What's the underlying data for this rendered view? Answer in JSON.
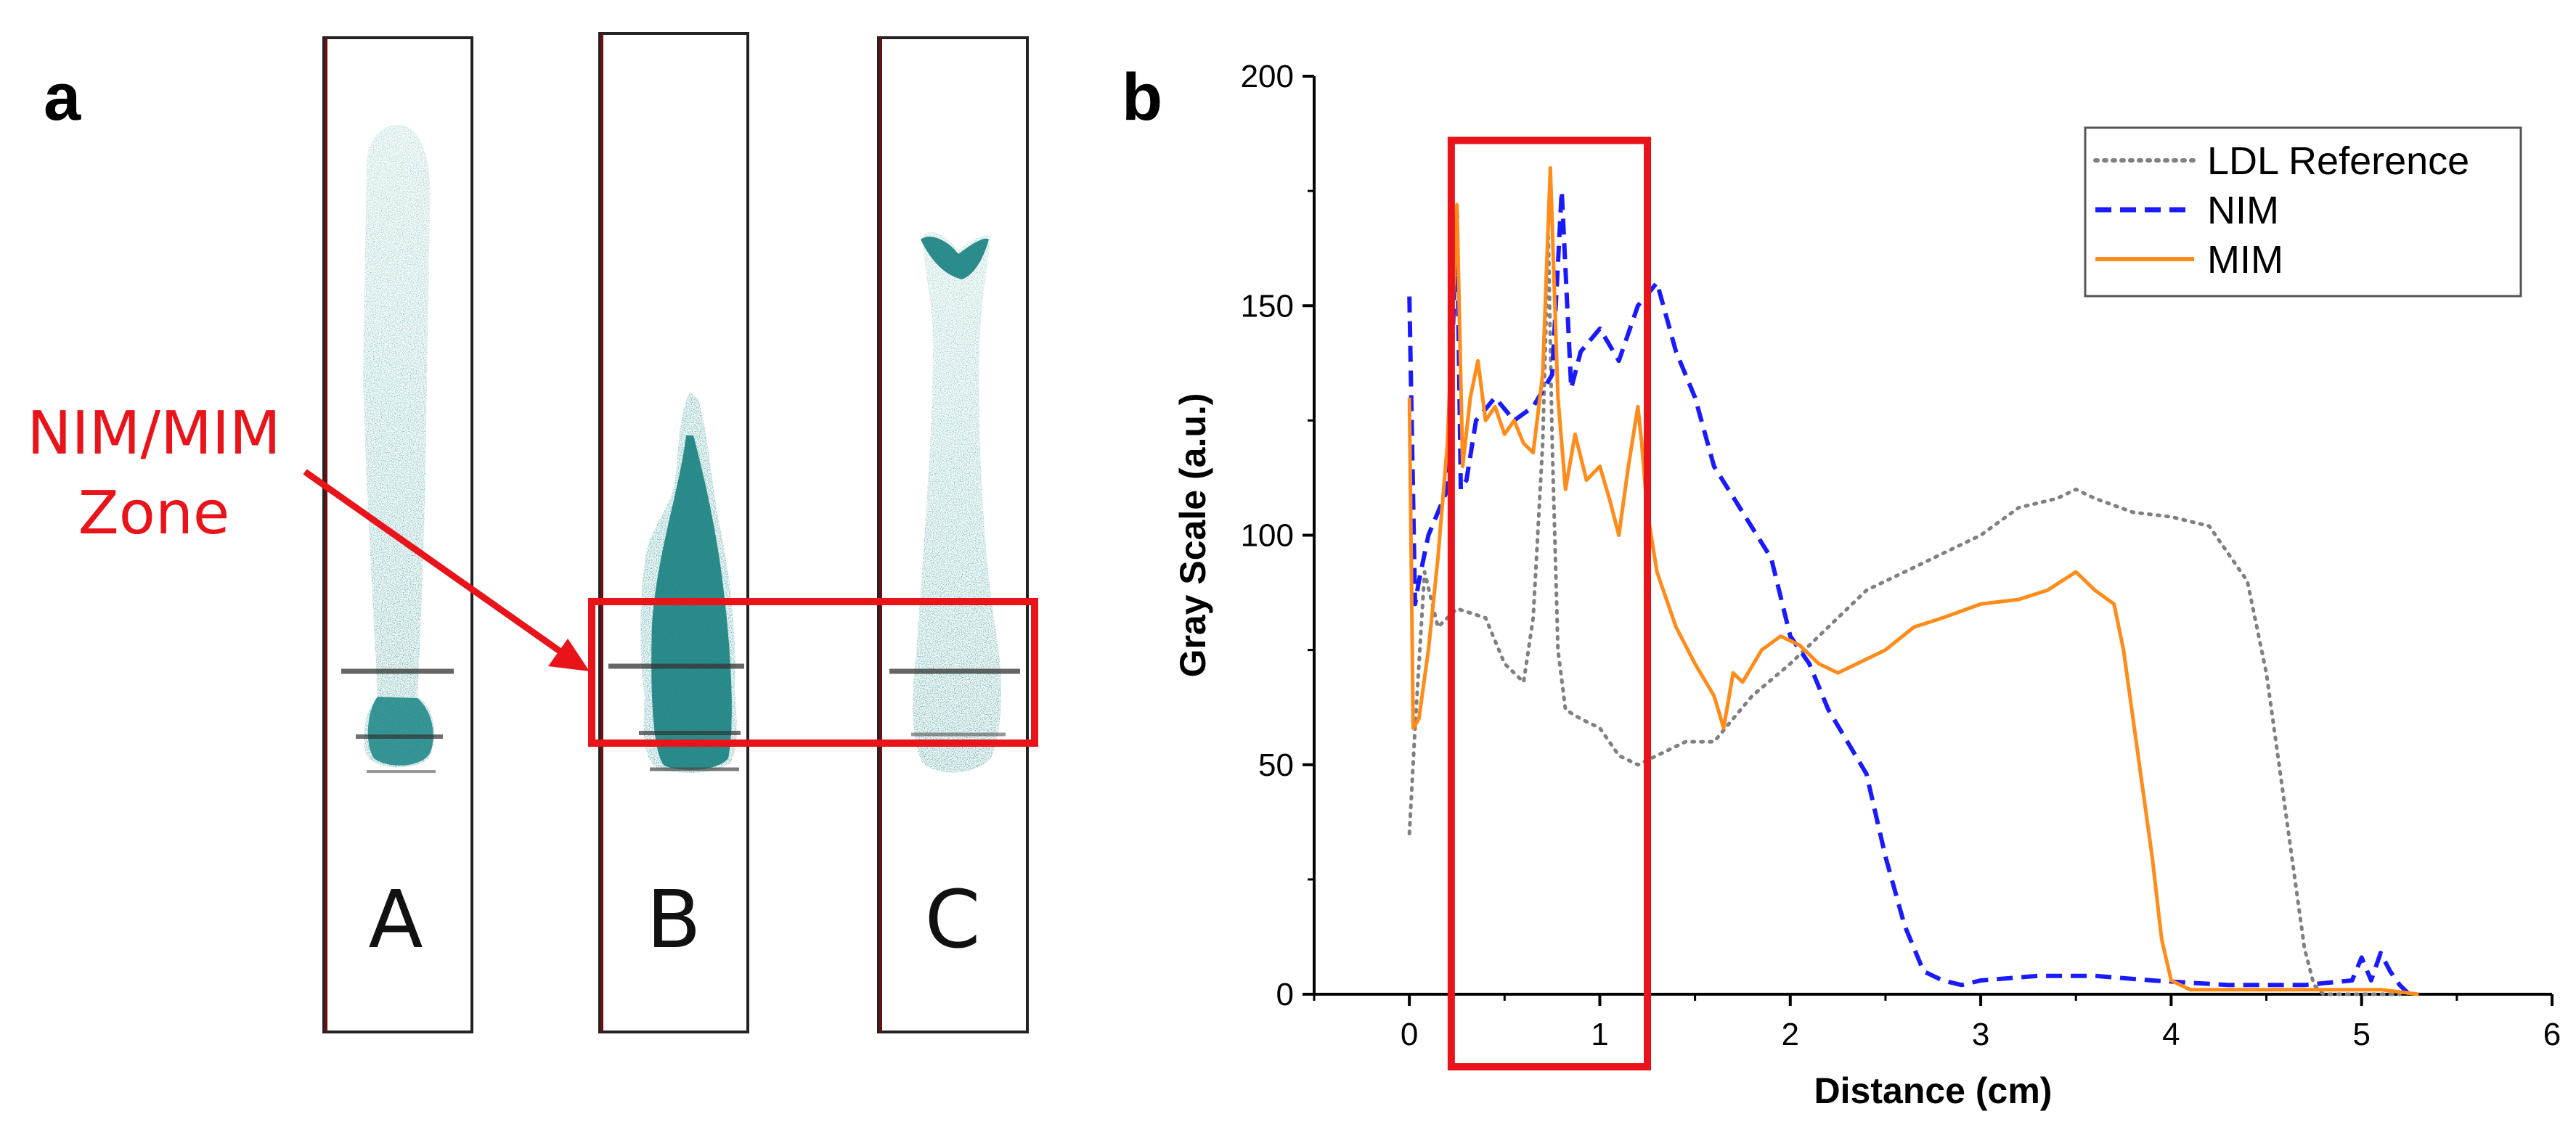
{
  "panel_a": {
    "label": "a",
    "strips": [
      {
        "label": "A"
      },
      {
        "label": "B"
      },
      {
        "label": "C"
      }
    ],
    "zone_label_line1": "NIM/MIM",
    "zone_label_line2": "Zone"
  },
  "panel_b": {
    "label": "b"
  },
  "colors": {
    "highlight": "#e8141a",
    "teal": "#1d8a8a",
    "ldl": "#808080",
    "nim": "#1a1aff",
    "mim": "#ff8c1a"
  },
  "chart_data": {
    "type": "line",
    "title": "",
    "xlabel": "Distance (cm)",
    "ylabel": "Gray Scale (a.u.)",
    "xlim": [
      -0.5,
      6
    ],
    "ylim": [
      0,
      200
    ],
    "xticks": [
      0,
      1,
      2,
      3,
      4,
      5,
      6
    ],
    "yticks": [
      0,
      50,
      100,
      150,
      200
    ],
    "highlight_region": {
      "x": [
        0.22,
        1.25
      ],
      "y": [
        0,
        186
      ]
    },
    "legend_position": "top-right",
    "series": [
      {
        "name": "LDL Reference",
        "style": "dotted",
        "color": "#808080",
        "x": [
          0,
          0.03,
          0.08,
          0.15,
          0.25,
          0.4,
          0.5,
          0.6,
          0.65,
          0.7,
          0.73,
          0.75,
          0.78,
          0.82,
          0.9,
          1.0,
          1.1,
          1.2,
          1.3,
          1.45,
          1.6,
          1.8,
          2.0,
          2.2,
          2.4,
          2.6,
          2.8,
          3.0,
          3.2,
          3.4,
          3.5,
          3.6,
          3.8,
          4.0,
          4.2,
          4.4,
          4.5,
          4.55,
          4.6,
          4.65,
          4.7,
          4.75,
          4.8,
          5.0,
          5.2
        ],
        "y": [
          35,
          58,
          92,
          80,
          84,
          82,
          72,
          68,
          82,
          120,
          165,
          120,
          75,
          62,
          60,
          58,
          52,
          50,
          52,
          55,
          55,
          65,
          72,
          80,
          88,
          92,
          96,
          100,
          106,
          108,
          110,
          108,
          105,
          104,
          102,
          90,
          70,
          55,
          40,
          25,
          10,
          2,
          0,
          0,
          0
        ]
      },
      {
        "name": "NIM",
        "style": "dashed",
        "color": "#1a1aff",
        "x": [
          0,
          0.03,
          0.05,
          0.1,
          0.2,
          0.25,
          0.27,
          0.3,
          0.35,
          0.45,
          0.55,
          0.65,
          0.75,
          0.8,
          0.85,
          0.9,
          1.0,
          1.1,
          1.2,
          1.3,
          1.4,
          1.5,
          1.6,
          1.75,
          1.9,
          2.0,
          2.1,
          2.2,
          2.3,
          2.4,
          2.5,
          2.6,
          2.7,
          2.8,
          2.9,
          3.0,
          3.3,
          3.6,
          3.9,
          4.3,
          4.7,
          4.95,
          5.0,
          5.05,
          5.1,
          5.15,
          5.2,
          5.25
        ],
        "y": [
          152,
          85,
          90,
          100,
          110,
          170,
          110,
          112,
          125,
          130,
          125,
          128,
          135,
          175,
          132,
          140,
          145,
          138,
          150,
          155,
          140,
          130,
          115,
          105,
          95,
          78,
          72,
          62,
          55,
          48,
          30,
          15,
          5,
          3,
          2,
          3,
          4,
          4,
          3,
          2,
          2,
          3,
          8,
          3,
          9,
          5,
          2,
          0
        ]
      },
      {
        "name": "MIM",
        "style": "solid",
        "color": "#ff8c1a",
        "x": [
          0,
          0.02,
          0.05,
          0.1,
          0.15,
          0.2,
          0.25,
          0.28,
          0.32,
          0.36,
          0.4,
          0.45,
          0.5,
          0.55,
          0.6,
          0.65,
          0.7,
          0.74,
          0.78,
          0.82,
          0.87,
          0.93,
          1.0,
          1.05,
          1.1,
          1.15,
          1.2,
          1.22,
          1.25,
          1.3,
          1.4,
          1.5,
          1.6,
          1.65,
          1.7,
          1.75,
          1.85,
          1.95,
          2.05,
          2.15,
          2.25,
          2.35,
          2.5,
          2.65,
          2.8,
          3.0,
          3.2,
          3.35,
          3.5,
          3.6,
          3.7,
          3.75,
          3.8,
          3.85,
          3.9,
          3.95,
          4.0,
          4.1,
          4.3,
          4.6,
          4.9,
          5.1,
          5.3
        ],
        "y": [
          130,
          58,
          60,
          75,
          95,
          120,
          172,
          115,
          130,
          138,
          125,
          128,
          122,
          125,
          120,
          118,
          135,
          180,
          130,
          110,
          122,
          112,
          115,
          108,
          100,
          115,
          128,
          120,
          105,
          92,
          80,
          72,
          65,
          58,
          70,
          68,
          75,
          78,
          76,
          72,
          70,
          72,
          75,
          80,
          82,
          85,
          86,
          88,
          92,
          88,
          85,
          75,
          60,
          45,
          30,
          12,
          3,
          1,
          1,
          1,
          1,
          1,
          0
        ]
      }
    ]
  }
}
